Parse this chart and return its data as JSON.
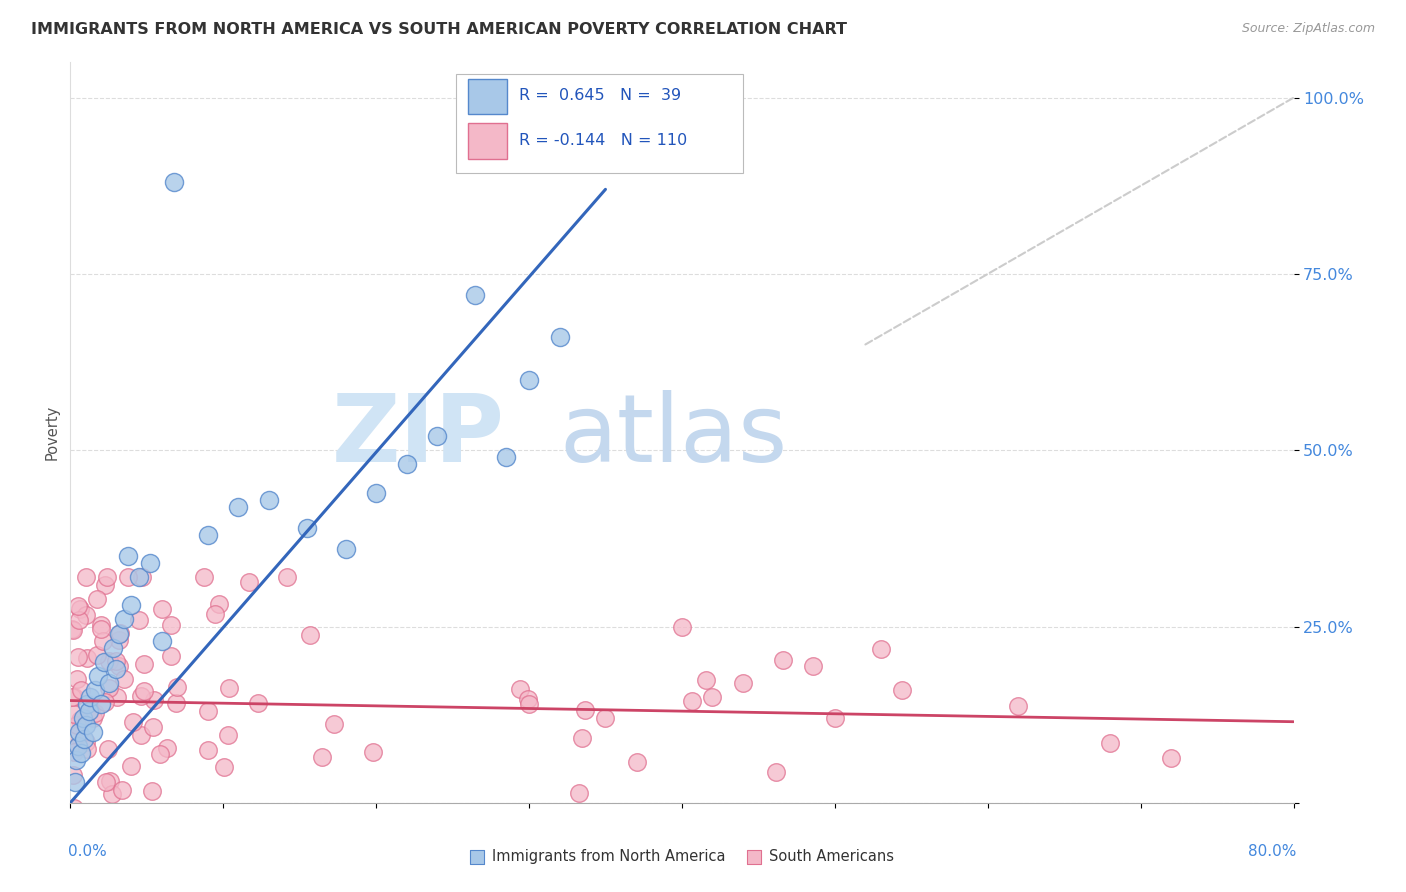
{
  "title": "IMMIGRANTS FROM NORTH AMERICA VS SOUTH AMERICAN POVERTY CORRELATION CHART",
  "source": "Source: ZipAtlas.com",
  "ylabel": "Poverty",
  "blue_color": "#a8c8e8",
  "pink_color": "#f4b8c8",
  "blue_edge_color": "#5588cc",
  "pink_edge_color": "#e07090",
  "blue_line_color": "#3366bb",
  "pink_line_color": "#cc4466",
  "diagonal_color": "#cccccc",
  "tick_color": "#4488dd",
  "watermark_zip_color": "#d0e4f5",
  "watermark_atlas_color": "#c4d8ee",
  "legend_text_color": "#2255bb",
  "legend_r_color": "#2255bb",
  "blue_line_x": [
    0.0,
    0.35
  ],
  "blue_line_y": [
    0.0,
    0.87
  ],
  "pink_line_x": [
    0.0,
    0.8
  ],
  "pink_line_y": [
    0.145,
    0.115
  ],
  "diag_line_x": [
    0.52,
    0.8
  ],
  "diag_line_y": [
    0.65,
    1.0
  ],
  "xlim": [
    0.0,
    0.8
  ],
  "ylim": [
    0.0,
    1.05
  ],
  "ytick_vals": [
    0.0,
    0.25,
    0.5,
    0.75,
    1.0
  ],
  "ytick_labels": [
    "",
    "25.0%",
    "50.0%",
    "75.0%",
    "100.0%"
  ]
}
